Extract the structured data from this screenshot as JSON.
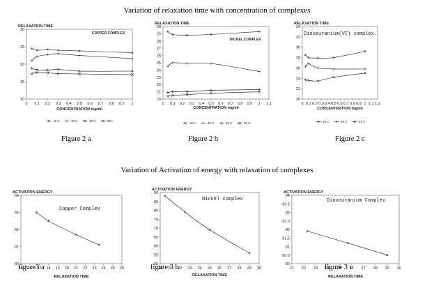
{
  "section_titles": {
    "relaxation": "Variation of relaxation time with concentration of complexes",
    "activation": "Variation of Activation of energy with relaxation of complexes"
  },
  "captions": {
    "fig2a": "Figure 2 a",
    "fig2b": "Figure 2 b",
    "fig2c": "Figure 2 c",
    "fig3a": "figure3 a",
    "fig3b": "figure 3 b",
    "fig3c": "figure 3 c"
  },
  "chart_data": [
    {
      "id": "fig2a",
      "type": "line",
      "title": "COPPER COMPLEX",
      "ylabel": "RELAXATION TIME",
      "xlabel": "CONCENTRATION mg/ml",
      "xlim": [
        0,
        1
      ],
      "ylim": [
        10,
        30
      ],
      "xticks": [
        "0",
        "0.1",
        "0.2",
        "0.3",
        "0.4",
        "0.5",
        "0.6",
        "0.7",
        "0.8",
        "0.9",
        "1"
      ],
      "yticks": [
        "10",
        "15",
        "20",
        "25",
        "30"
      ],
      "legend": [
        "15 C",
        "30 C",
        "45 C",
        "60 c"
      ],
      "series": [
        {
          "name": "15 C",
          "x": [
            0.05,
            0.1,
            0.2,
            0.3,
            0.5,
            1.0
          ],
          "y": [
            24.5,
            24.0,
            24.2,
            24.0,
            23.8,
            23.3
          ]
        },
        {
          "name": "30 C",
          "x": [
            0.05,
            0.1,
            0.2,
            0.3,
            0.5,
            1.0
          ],
          "y": [
            21.0,
            22.2,
            22.7,
            23.0,
            22.5,
            21.6
          ]
        },
        {
          "name": "45 C",
          "x": [
            0.05,
            0.1,
            0.2,
            0.3,
            0.5,
            1.0
          ],
          "y": [
            18.8,
            18.4,
            18.3,
            18.5,
            18.0,
            18.0
          ]
        },
        {
          "name": "60 c",
          "x": [
            0.05,
            0.1,
            0.2,
            0.3,
            0.5,
            1.0
          ],
          "y": [
            17.3,
            17.6,
            17.5,
            17.3,
            17.2,
            17.0
          ]
        }
      ]
    },
    {
      "id": "fig2b",
      "type": "line",
      "title": "NICKEL COMPLEX",
      "ylabel": "RELAXATION TIME",
      "xlabel": "CONCENTRATION mg/ml",
      "xlim": [
        0,
        1.1
      ],
      "ylim": [
        20,
        30
      ],
      "xticks": [
        "0",
        "0.1",
        "0.2",
        "0.3",
        "0.4",
        "0.5",
        "0.6",
        "0.7",
        "0.8",
        "0.9",
        "1",
        "1.1"
      ],
      "yticks": [
        "20",
        "21",
        "22",
        "23",
        "24",
        "25",
        "26",
        "27",
        "28",
        "29",
        "30"
      ],
      "legend": [
        "15 C",
        "30 C",
        "45 C",
        "60 C"
      ],
      "series": [
        {
          "name": "15 C",
          "x": [
            0.05,
            0.1,
            0.25,
            0.5,
            1.0
          ],
          "y": [
            29.3,
            28.9,
            28.8,
            28.9,
            29.3
          ]
        },
        {
          "name": "30 C",
          "x": [
            0.05,
            0.1,
            0.25,
            0.5,
            1.0
          ],
          "y": [
            24.5,
            25.0,
            24.9,
            24.9,
            23.8
          ]
        },
        {
          "name": "45 C",
          "x": [
            0.05,
            0.1,
            0.25,
            0.5,
            1.0
          ],
          "y": [
            20.9,
            21.0,
            21.0,
            21.2,
            21.3
          ]
        },
        {
          "name": "60 C",
          "x": [
            0.05,
            0.1,
            0.25,
            0.5,
            1.0
          ],
          "y": [
            20.4,
            20.5,
            20.6,
            20.8,
            21.0
          ]
        }
      ]
    },
    {
      "id": "fig2c",
      "type": "line",
      "title": "Dioxouranium(VI) complex.",
      "ylabel": "RELAXATION TIME",
      "xlabel": "CONCENTRATION mg/ml",
      "xlim": [
        0,
        1.2
      ],
      "ylim": [
        20,
        34
      ],
      "xticks": [
        "0",
        "0.1",
        "0.2",
        "0.3",
        "0.4",
        "0.5",
        "0.6",
        "0.7",
        "0.8",
        "0.9",
        "1",
        "1.1",
        "1.2"
      ],
      "yticks": [
        "20",
        "22",
        "24",
        "26",
        "28",
        "30",
        "32",
        "34"
      ],
      "legend": [
        "15 C",
        "30 C",
        "45 C"
      ],
      "series": [
        {
          "name": "15 C",
          "x": [
            0.05,
            0.1,
            0.25,
            0.5,
            1.0
          ],
          "y": [
            28.5,
            28.0,
            27.9,
            28.0,
            29.2
          ]
        },
        {
          "name": "30 C",
          "x": [
            0.05,
            0.1,
            0.25,
            0.5,
            1.0
          ],
          "y": [
            26.3,
            26.8,
            26.0,
            25.8,
            25.8
          ]
        },
        {
          "name": "45 C",
          "x": [
            0.05,
            0.1,
            0.25,
            0.5,
            1.0
          ],
          "y": [
            23.7,
            23.6,
            23.5,
            24.2,
            25.0
          ]
        }
      ]
    },
    {
      "id": "fig3a",
      "type": "line",
      "title": "Copper Complex",
      "ylabel": "ACTIVATION ENERGY",
      "xlabel": "RELAXATION TIME",
      "xlim": [
        15,
        26
      ],
      "ylim": [
        80,
        84
      ],
      "xticks": [
        "15",
        "16",
        "17",
        "18",
        "19",
        "20",
        "21",
        "22",
        "23",
        "24",
        "25",
        "26"
      ],
      "yticks": [
        "80",
        "81",
        "82",
        "83",
        "84"
      ],
      "series": [
        {
          "name": "",
          "x": [
            16.7,
            18.0,
            21.0,
            23.5
          ],
          "y": [
            83.0,
            82.5,
            81.7,
            81.1
          ]
        }
      ]
    },
    {
      "id": "fig3b",
      "type": "line",
      "title": "Nickel complex",
      "ylabel": "ACTIVATION ENERGY",
      "xlabel": "RELAXATION TIME",
      "xlim": [
        20,
        30
      ],
      "ylim": [
        50,
        90
      ],
      "xticks": [
        "20",
        "21",
        "22",
        "23",
        "24",
        "25",
        "26",
        "27",
        "28",
        "29",
        "30"
      ],
      "yticks": [
        "50",
        "55",
        "60",
        "65",
        "70",
        "75",
        "80",
        "85",
        "90"
      ],
      "series": [
        {
          "name": "",
          "x": [
            20.5,
            22.5,
            25.0,
            29.0
          ],
          "y": [
            88.0,
            79.0,
            69.0,
            56.0
          ]
        }
      ]
    },
    {
      "id": "fig3c",
      "type": "line",
      "title": "Dioxouranium Complex",
      "ylabel": "ACTIVATION ENERGY",
      "xlabel": "RELAXATION TIME",
      "xlim": [
        21,
        30
      ],
      "ylim": [
        80,
        84
      ],
      "xticks": [
        "21",
        "22",
        "23",
        "24",
        "25",
        "26",
        "27",
        "28",
        "29",
        "30"
      ],
      "yticks": [
        "80",
        "80.5",
        "81",
        "81.5",
        "82",
        "82.5",
        "83",
        "83.5",
        "84"
      ],
      "series": [
        {
          "name": "",
          "x": [
            22.3,
            25.7,
            29.0
          ],
          "y": [
            81.9,
            81.2,
            80.5
          ]
        }
      ]
    }
  ]
}
